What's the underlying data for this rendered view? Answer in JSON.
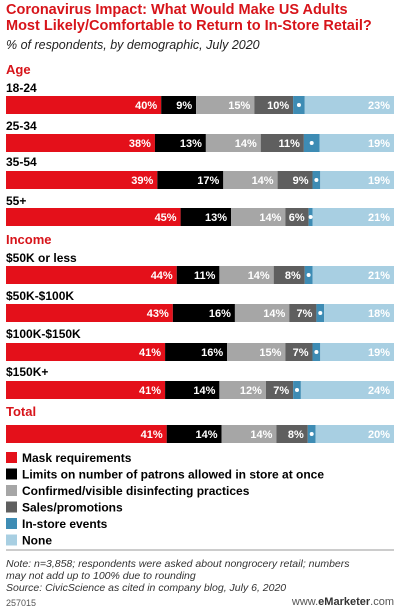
{
  "title_line1": "Coronavirus Impact: What Would Make US Adults",
  "title_line2": "Most Likely/Comfortable to Return to In-Store Retail?",
  "subtitle": "% of respondents, by demographic, July 2020",
  "note_line1": "Note: n=3,858; respondents were asked about nongrocery retail; numbers",
  "note_line2": "may not add up to 100% due to rounding",
  "source": "Source: CivicScience as cited in company blog, July 6, 2020",
  "chart_id": "257015",
  "brand_prefix": "www.",
  "brand_name": "eMarketer",
  "brand_suffix": ".com",
  "chart_data": {
    "type": "bar",
    "stacked": "100%",
    "orientation": "horizontal",
    "colors": [
      "#e4101a",
      "#000000",
      "#a6a6a6",
      "#5f5f5f",
      "#3e8cb4",
      "#a8cfe2"
    ],
    "series": [
      {
        "name": "Mask requirements",
        "color": "#e4101a"
      },
      {
        "name": "Limits on number of patrons allowed in store at once",
        "color": "#000000"
      },
      {
        "name": "Confirmed/visible disinfecting practices",
        "color": "#a6a6a6"
      },
      {
        "name": "Sales/promotions",
        "color": "#5f5f5f"
      },
      {
        "name": "In-store events",
        "color": "#3e8cb4"
      },
      {
        "name": "None",
        "color": "#a8cfe2"
      }
    ],
    "groups": [
      {
        "name": "Age",
        "rows": [
          {
            "label": "18-24",
            "values": [
              40,
              9,
              15,
              10,
              3,
              23
            ]
          },
          {
            "label": "25-34",
            "values": [
              38,
              13,
              14,
              11,
              4,
              19
            ]
          },
          {
            "label": "35-54",
            "values": [
              39,
              17,
              14,
              9,
              2,
              19
            ]
          },
          {
            "label": "55+",
            "values": [
              45,
              13,
              14,
              6,
              1,
              21
            ]
          }
        ]
      },
      {
        "name": "Income",
        "rows": [
          {
            "label": "$50K or less",
            "values": [
              44,
              11,
              14,
              8,
              2,
              21
            ]
          },
          {
            "label": "$50K-$100K",
            "values": [
              43,
              16,
              14,
              7,
              2,
              18
            ]
          },
          {
            "label": "$100K-$150K",
            "values": [
              41,
              16,
              15,
              7,
              2,
              19
            ]
          },
          {
            "label": "$150K+",
            "values": [
              41,
              14,
              12,
              7,
              2,
              24
            ]
          }
        ]
      },
      {
        "name": "Total",
        "rows": [
          {
            "label": "",
            "values": [
              41,
              14,
              14,
              8,
              2,
              20
            ]
          }
        ]
      }
    ]
  }
}
